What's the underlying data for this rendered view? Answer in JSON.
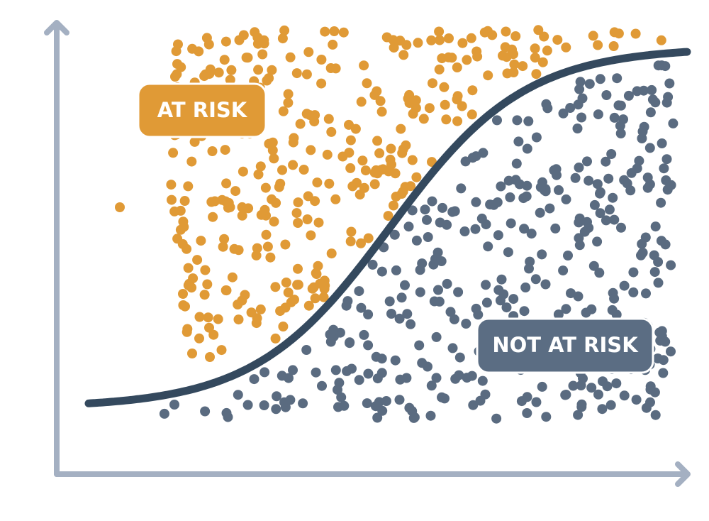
{
  "labels": {
    "at_risk": "AT RISK",
    "not_at_risk": "NOT AT RISK"
  }
}
